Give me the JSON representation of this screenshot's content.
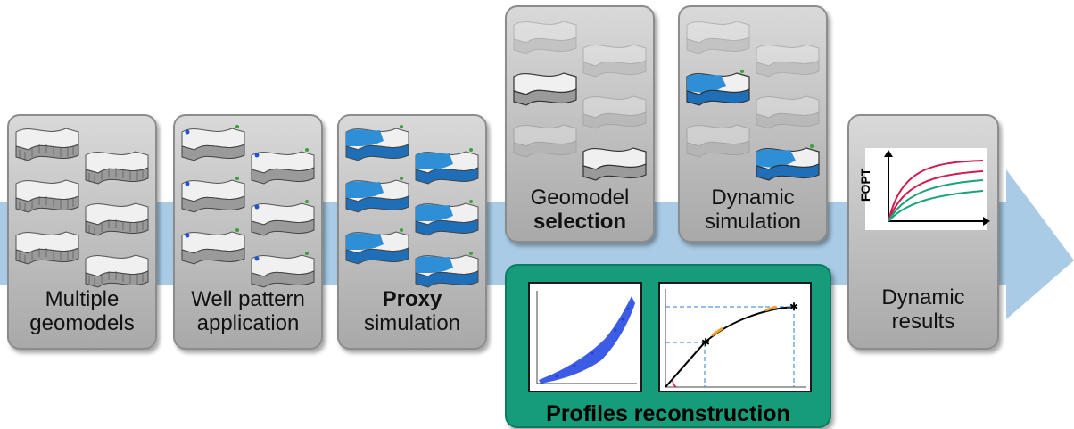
{
  "steps": {
    "multiple": {
      "line1": "Multiple",
      "line2": "geomodels"
    },
    "well": {
      "line1": "Well pattern",
      "line2": "application"
    },
    "proxy": {
      "bold": "Proxy",
      "line2": "simulation"
    },
    "selection": {
      "line1": "Geomodel",
      "bold": "selection"
    },
    "dynamic_sim": {
      "line1": "Dynamic",
      "line2": "simulation"
    },
    "results": {
      "line1": "Dynamic",
      "line2": "results",
      "ylabel": "FOPT"
    }
  },
  "reconstruction": {
    "title": "Profiles reconstruction"
  },
  "colors": {
    "arrow": "#a9cbe6",
    "card": "#bdbdbd",
    "green": "#169b7b",
    "water": "#2f8fd6",
    "red_curve": "#d11a4e",
    "green_curve": "#1aa37a"
  }
}
